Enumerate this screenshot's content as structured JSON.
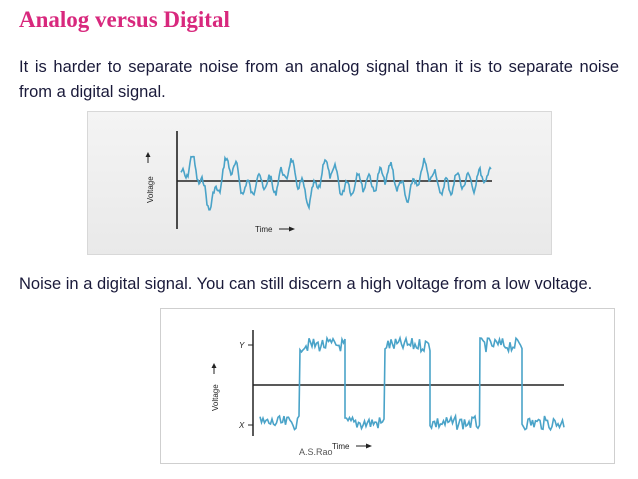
{
  "slide": {
    "title": "Analog versus Digital",
    "paragraph1": "It is harder to separate noise from an analog signal than it is to separate noise from a digital signal.",
    "paragraph2": "Noise in a digital signal.  You can still discern a high voltage from a low voltage.",
    "credit": "A.S.Rao"
  },
  "figure_analog": {
    "ylabel": "Voltage",
    "xlabel": "Time"
  },
  "figure_digital": {
    "ylabel": "Voltage",
    "xlabel": "Time",
    "y_high_label": "Y",
    "x_low_label": "X"
  },
  "colors": {
    "title": "#d8287d",
    "text": "#1a1a3a",
    "signal": "#4aa3c8",
    "axis": "#222222"
  }
}
